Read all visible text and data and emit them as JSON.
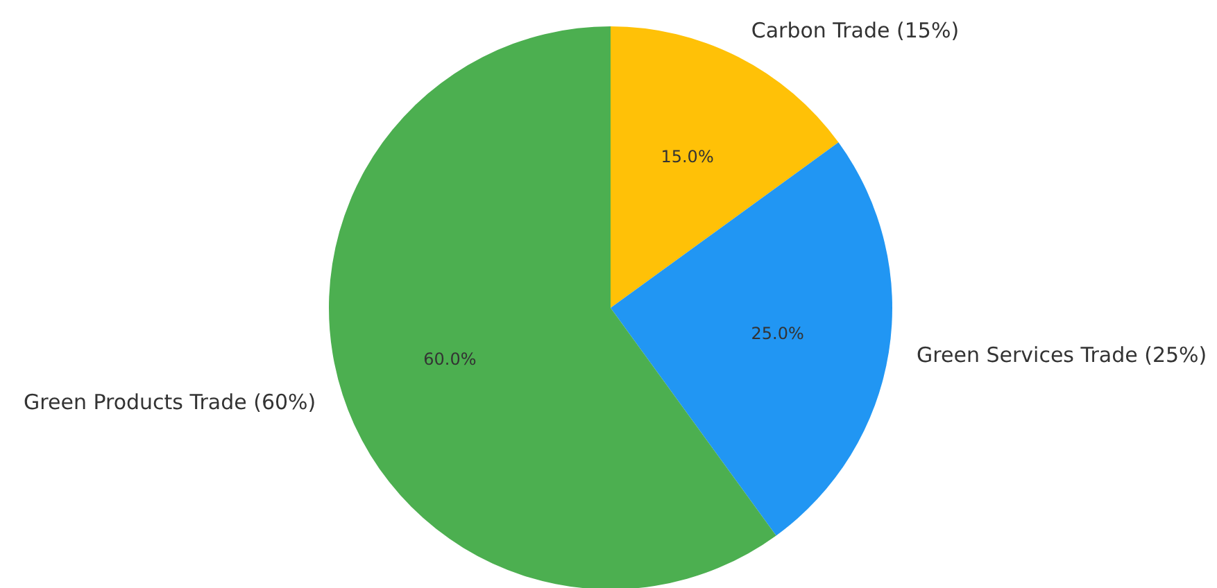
{
  "chart_data": {
    "type": "pie",
    "categories": [
      "Carbon Trade (15%)",
      "Green Services Trade (25%)",
      "Green Products Trade (60%)"
    ],
    "values": [
      15,
      25,
      60
    ],
    "colors": [
      "#ffc107",
      "#2196f3",
      "#4caf50"
    ],
    "value_labels": [
      "15.0%",
      "25.0%",
      "60.0%"
    ]
  }
}
